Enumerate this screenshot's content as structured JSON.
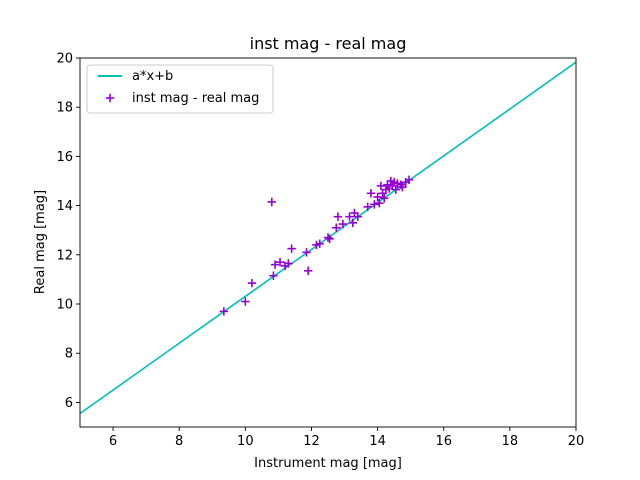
{
  "chart_data": {
    "type": "scatter",
    "title": "inst mag - real mag",
    "xlabel": "Instrument mag [mag]",
    "ylabel": "Real mag [mag]",
    "xlim": [
      5,
      20
    ],
    "ylim": [
      5,
      20
    ],
    "xticks": [
      6,
      8,
      10,
      12,
      14,
      16,
      18,
      20
    ],
    "yticks": [
      6,
      8,
      10,
      12,
      14,
      16,
      18,
      20
    ],
    "grid": false,
    "legend_position": "upper-left",
    "fit_line": {
      "name": "a*x+b",
      "color": "#00bfbf",
      "points": [
        [
          5,
          5.55
        ],
        [
          20,
          19.83
        ]
      ]
    },
    "series": [
      {
        "name": "inst mag - real mag",
        "color": "#9400d3",
        "marker": "plus",
        "points": [
          [
            9.35,
            9.7
          ],
          [
            10.0,
            10.1
          ],
          [
            10.2,
            10.85
          ],
          [
            10.8,
            14.15
          ],
          [
            10.85,
            11.15
          ],
          [
            10.9,
            11.6
          ],
          [
            11.05,
            11.7
          ],
          [
            11.2,
            11.55
          ],
          [
            11.3,
            11.65
          ],
          [
            11.4,
            12.25
          ],
          [
            11.85,
            12.1
          ],
          [
            11.9,
            11.35
          ],
          [
            12.15,
            12.4
          ],
          [
            12.25,
            12.45
          ],
          [
            12.5,
            12.7
          ],
          [
            12.55,
            12.65
          ],
          [
            12.75,
            13.1
          ],
          [
            12.8,
            13.55
          ],
          [
            12.95,
            13.25
          ],
          [
            13.15,
            13.55
          ],
          [
            13.25,
            13.3
          ],
          [
            13.3,
            13.7
          ],
          [
            13.4,
            13.55
          ],
          [
            13.7,
            13.95
          ],
          [
            13.8,
            14.5
          ],
          [
            13.9,
            14.05
          ],
          [
            14.0,
            14.35
          ],
          [
            14.05,
            14.1
          ],
          [
            14.1,
            14.8
          ],
          [
            14.15,
            14.5
          ],
          [
            14.2,
            14.3
          ],
          [
            14.25,
            14.65
          ],
          [
            14.3,
            14.85
          ],
          [
            14.35,
            14.7
          ],
          [
            14.4,
            15.0
          ],
          [
            14.45,
            14.8
          ],
          [
            14.5,
            14.95
          ],
          [
            14.55,
            14.65
          ],
          [
            14.6,
            14.9
          ],
          [
            14.7,
            14.85
          ],
          [
            14.75,
            14.75
          ],
          [
            14.85,
            14.95
          ],
          [
            14.95,
            15.05
          ]
        ]
      }
    ]
  }
}
